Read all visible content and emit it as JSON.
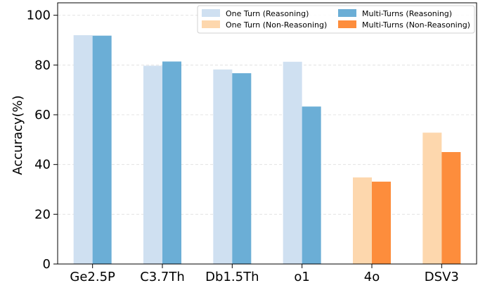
{
  "chart_data": {
    "type": "bar",
    "categories": [
      "Ge2.5P",
      "C3.7Th",
      "Db1.5Th",
      "o1",
      "4o",
      "DSV3"
    ],
    "ylabel": "Accuracy(%)",
    "xlabel": "",
    "ylim": [
      0,
      105
    ],
    "yticks": [
      0,
      20,
      40,
      60,
      80,
      100
    ],
    "grid": "horizontal dashed",
    "legend_position": "top-right",
    "bars": [
      {
        "category": "Ge2.5P",
        "series": "One Turn (Reasoning)",
        "value": 92.0
      },
      {
        "category": "Ge2.5P",
        "series": "Multi-Turns (Reasoning)",
        "value": 91.8
      },
      {
        "category": "C3.7Th",
        "series": "One Turn (Reasoning)",
        "value": 79.7
      },
      {
        "category": "C3.7Th",
        "series": "Multi-Turns (Reasoning)",
        "value": 81.4
      },
      {
        "category": "Db1.5Th",
        "series": "One Turn (Reasoning)",
        "value": 78.2
      },
      {
        "category": "Db1.5Th",
        "series": "Multi-Turns (Reasoning)",
        "value": 76.7
      },
      {
        "category": "o1",
        "series": "One Turn (Reasoning)",
        "value": 81.3
      },
      {
        "category": "o1",
        "series": "Multi-Turns (Reasoning)",
        "value": 63.3
      },
      {
        "category": "4o",
        "series": "One Turn (Non-Reasoning)",
        "value": 34.8
      },
      {
        "category": "4o",
        "series": "Multi-Turns (Non-Reasoning)",
        "value": 33.1
      },
      {
        "category": "DSV3",
        "series": "One Turn (Non-Reasoning)",
        "value": 52.8
      },
      {
        "category": "DSV3",
        "series": "Multi-Turns (Non-Reasoning)",
        "value": 45.0
      }
    ],
    "series": [
      {
        "name": "One Turn (Reasoning)",
        "color": "#cfe0f1"
      },
      {
        "name": "Multi-Turns (Reasoning)",
        "color": "#6baed6"
      },
      {
        "name": "One Turn (Non-Reasoning)",
        "color": "#fdd7ad"
      },
      {
        "name": "Multi-Turns (Non-Reasoning)",
        "color": "#fd8d3c"
      }
    ]
  }
}
